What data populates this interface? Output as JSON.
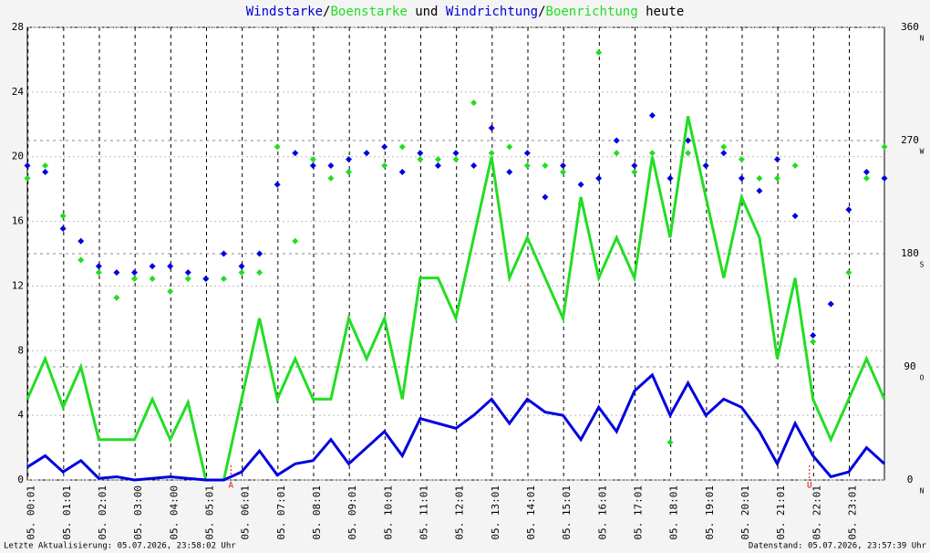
{
  "chart_data": {
    "type": "line",
    "title_joiners": [
      "/",
      " und ",
      "/",
      " heute"
    ],
    "x": [
      0,
      0.5,
      1,
      1.5,
      2,
      2.5,
      3,
      3.5,
      4,
      4.5,
      5,
      5.5,
      6,
      6.5,
      7,
      7.5,
      8,
      8.5,
      9,
      9.5,
      10,
      10.5,
      11,
      11.5,
      12,
      12.5,
      13,
      13.5,
      14,
      14.5,
      15,
      15.5,
      16,
      16.5,
      17,
      17.5,
      18,
      18.5,
      19,
      19.5,
      20,
      20.5,
      21,
      21.5,
      22,
      22.5,
      23,
      23.5,
      24
    ],
    "xlim": [
      0,
      24
    ],
    "xticks": [
      {
        "value": 0.017,
        "label": "05. 00:01"
      },
      {
        "value": 1.017,
        "label": "05. 01:01"
      },
      {
        "value": 2.017,
        "label": "05. 02:01"
      },
      {
        "value": 3.017,
        "label": "05. 03:00"
      },
      {
        "value": 4.017,
        "label": "05. 04:00"
      },
      {
        "value": 5.017,
        "label": "05. 05:01"
      },
      {
        "value": 6.017,
        "label": "05. 06:01"
      },
      {
        "value": 7.017,
        "label": "05. 07:01"
      },
      {
        "value": 8.017,
        "label": "05. 08:01"
      },
      {
        "value": 9.017,
        "label": "05. 09:01"
      },
      {
        "value": 10.017,
        "label": "05. 10:01"
      },
      {
        "value": 11.017,
        "label": "05. 11:01"
      },
      {
        "value": 12.017,
        "label": "05. 12:01"
      },
      {
        "value": 13.017,
        "label": "05. 13:01"
      },
      {
        "value": 14.017,
        "label": "05. 14:01"
      },
      {
        "value": 15.017,
        "label": "05. 15:01"
      },
      {
        "value": 16.017,
        "label": "05. 16:01"
      },
      {
        "value": 17.017,
        "label": "05. 17:01"
      },
      {
        "value": 18.017,
        "label": "05. 18:01"
      },
      {
        "value": 19.017,
        "label": "05. 19:01"
      },
      {
        "value": 20.017,
        "label": "05. 20:01"
      },
      {
        "value": 21.017,
        "label": "05. 21:01"
      },
      {
        "value": 22.017,
        "label": "05. 22:01"
      },
      {
        "value": 23.017,
        "label": "05. 23:01"
      }
    ],
    "ylim": [
      0,
      28
    ],
    "yticks": [
      0,
      4,
      8,
      12,
      16,
      20,
      24,
      28
    ],
    "y2lim": [
      0,
      360
    ],
    "y2ticks": [
      0,
      90,
      180,
      270,
      360
    ],
    "y2tick_directions": [
      "N",
      "O",
      "S",
      "W",
      "N"
    ],
    "grid": true,
    "series": [
      {
        "name": "Windstarke",
        "color": "#0000dd",
        "kind": "line",
        "values": [
          0.8,
          1.5,
          0.5,
          1.2,
          0.1,
          0.2,
          0,
          0.1,
          0.2,
          0.1,
          0,
          0,
          0.5,
          1.8,
          0.3,
          1.0,
          1.2,
          2.5,
          1.0,
          2.0,
          3.0,
          1.5,
          3.8,
          3.5,
          3.2,
          4.0,
          5.0,
          3.5,
          5.0,
          4.2,
          4.0,
          2.5,
          4.5,
          3.0,
          5.5,
          6.5,
          4.0,
          6.0,
          4.0,
          5.0,
          4.5,
          3.0,
          1.0,
          3.5,
          1.5,
          0.2,
          0.5,
          2.0,
          1.0
        ]
      },
      {
        "name": "Boenstarke",
        "color": "#22dd22",
        "kind": "line",
        "values": [
          5,
          7.5,
          4.5,
          7,
          2.5,
          2.5,
          2.5,
          5,
          2.5,
          4.8,
          0,
          0,
          5,
          10,
          5,
          7.5,
          5,
          5,
          10,
          7.5,
          10,
          5,
          12.5,
          12.5,
          10,
          15,
          20,
          12.5,
          15,
          12.5,
          10,
          17.5,
          12.5,
          15,
          12.5,
          20,
          15,
          22.5,
          17.5,
          12.5,
          17.5,
          15,
          7.5,
          12.5,
          5,
          2.5,
          5,
          7.5,
          5
        ]
      },
      {
        "name": "Windrichtung",
        "color": "#0000dd",
        "kind": "scatter",
        "axis": "y2",
        "values": [
          250,
          245,
          200,
          190,
          170,
          165,
          165,
          170,
          170,
          165,
          160,
          180,
          170,
          180,
          235,
          260,
          250,
          250,
          255,
          260,
          265,
          245,
          260,
          250,
          260,
          250,
          280,
          245,
          260,
          225,
          250,
          235,
          240,
          270,
          250,
          290,
          240,
          270,
          250,
          260,
          240,
          230,
          255,
          210,
          115,
          140,
          215,
          245,
          240
        ]
      },
      {
        "name": "Boenrichtung",
        "color": "#22dd22",
        "kind": "scatter",
        "axis": "y2",
        "values": [
          240,
          250,
          210,
          175,
          165,
          145,
          160,
          160,
          150,
          160,
          160,
          160,
          165,
          165,
          265,
          190,
          255,
          240,
          245,
          260,
          250,
          265,
          255,
          255,
          255,
          300,
          260,
          265,
          250,
          250,
          245,
          220,
          340,
          260,
          245,
          260,
          30,
          260,
          250,
          265,
          255,
          240,
          240,
          250,
          110,
          140,
          165,
          240,
          265
        ]
      }
    ],
    "annotations": [
      {
        "x": 5.7,
        "label": "A"
      },
      {
        "x": 21.9,
        "label": "U"
      }
    ],
    "footer_left": "Letzte Aktualisierung: 05.07.2026, 23:58:02 Uhr",
    "footer_right": "Datenstand: 05.07.2026, 23:57:39 Uhr"
  }
}
